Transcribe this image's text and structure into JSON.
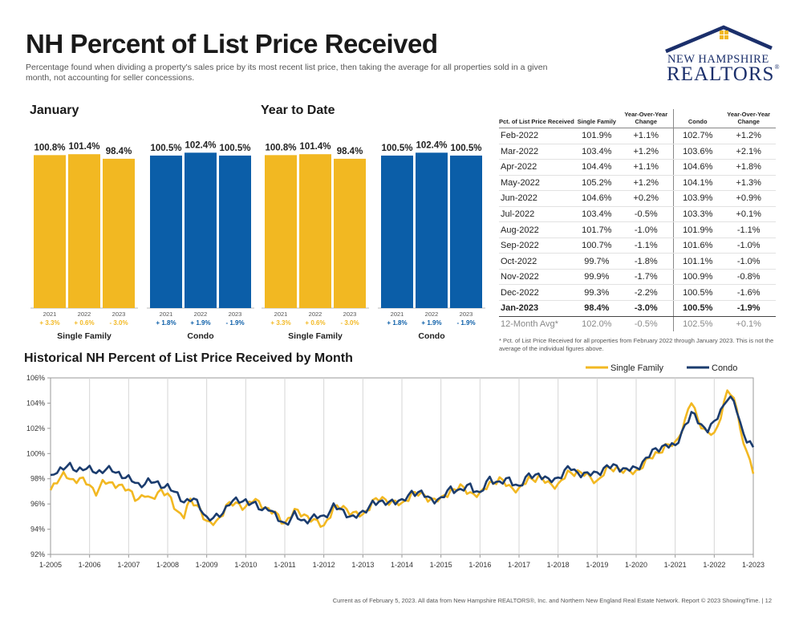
{
  "page": {
    "title": "NH Percent of List Price Received",
    "subtitle": "Percentage found when dividing a property's sales price by its most recent list price, then taking the average for all properties sold in a given month, not accounting for seller concessions.",
    "logo": {
      "line1": "NEW HAMPSHIRE",
      "line2": "REALTORS",
      "reg": "®"
    },
    "footer": "Current as of February 5, 2023. All data from New Hampshire REALTORS®, Inc. and Northern New England Real Estate Network. Report © 2023 ShowingTime. | 12"
  },
  "colors": {
    "single_family": "#f2b822",
    "condo": "#0b5ea8",
    "condo_line": "#1b3c6e",
    "positive_change": "#f2b822",
    "condo_change": "#0b5ea8"
  },
  "sections": {
    "january": "January",
    "ytd": "Year to Date",
    "historical": "Historical NH Percent of List Price Received by Month"
  },
  "chart_data": [
    {
      "type": "bar",
      "title": "January",
      "groups": [
        {
          "name": "Single Family",
          "categories": [
            "2021",
            "2022",
            "2023"
          ],
          "values": [
            100.8,
            101.4,
            98.4
          ],
          "labels": [
            "100.8%",
            "101.4%",
            "98.4%"
          ],
          "changes": [
            "+ 3.3%",
            "+ 0.6%",
            "- 3.0%"
          ]
        },
        {
          "name": "Condo",
          "categories": [
            "2021",
            "2022",
            "2023"
          ],
          "values": [
            100.5,
            102.4,
            100.5
          ],
          "labels": [
            "100.5%",
            "102.4%",
            "100.5%"
          ],
          "changes": [
            "+ 1.8%",
            "+ 1.9%",
            "- 1.9%"
          ]
        }
      ]
    },
    {
      "type": "bar",
      "title": "Year to Date",
      "groups": [
        {
          "name": "Single Family",
          "categories": [
            "2021",
            "2022",
            "2023"
          ],
          "values": [
            100.8,
            101.4,
            98.4
          ],
          "labels": [
            "100.8%",
            "101.4%",
            "98.4%"
          ],
          "changes": [
            "+ 3.3%",
            "+ 0.6%",
            "- 3.0%"
          ]
        },
        {
          "name": "Condo",
          "categories": [
            "2021",
            "2022",
            "2023"
          ],
          "values": [
            100.5,
            102.4,
            100.5
          ],
          "labels": [
            "100.5%",
            "102.4%",
            "100.5%"
          ],
          "changes": [
            "+ 1.8%",
            "+ 1.9%",
            "- 1.9%"
          ]
        }
      ]
    },
    {
      "type": "table",
      "headers": [
        "Pct. of List Price Received",
        "Single Family",
        "Year-Over-Year Change",
        "Condo",
        "Year-Over-Year Change"
      ],
      "rows": [
        [
          "Feb-2022",
          "101.9%",
          "+1.1%",
          "102.7%",
          "+1.2%"
        ],
        [
          "Mar-2022",
          "103.4%",
          "+1.2%",
          "103.6%",
          "+2.1%"
        ],
        [
          "Apr-2022",
          "104.4%",
          "+1.1%",
          "104.6%",
          "+1.8%"
        ],
        [
          "May-2022",
          "105.2%",
          "+1.2%",
          "104.1%",
          "+1.3%"
        ],
        [
          "Jun-2022",
          "104.6%",
          "+0.2%",
          "103.9%",
          "+0.9%"
        ],
        [
          "Jul-2022",
          "103.4%",
          "-0.5%",
          "103.3%",
          "+0.1%"
        ],
        [
          "Aug-2022",
          "101.7%",
          "-1.0%",
          "101.9%",
          "-1.1%"
        ],
        [
          "Sep-2022",
          "100.7%",
          "-1.1%",
          "101.6%",
          "-1.0%"
        ],
        [
          "Oct-2022",
          "99.7%",
          "-1.8%",
          "101.1%",
          "-1.0%"
        ],
        [
          "Nov-2022",
          "99.9%",
          "-1.7%",
          "100.9%",
          "-0.8%"
        ],
        [
          "Dec-2022",
          "99.3%",
          "-2.2%",
          "100.5%",
          "-1.6%"
        ],
        [
          "Jan-2023",
          "98.4%",
          "-3.0%",
          "100.5%",
          "-1.9%"
        ]
      ],
      "avg_row": [
        "12-Month Avg*",
        "102.0%",
        "-0.5%",
        "102.5%",
        "+0.1%"
      ],
      "footnote": "* Pct. of List Price Received for all properties from February 2022 through January 2023. This is not the average of the individual figures above."
    },
    {
      "type": "line",
      "title": "Historical NH Percent of List Price Received by Month",
      "xlabel": "",
      "ylabel": "",
      "x_ticks": [
        "1-2005",
        "1-2006",
        "1-2007",
        "1-2008",
        "1-2009",
        "1-2010",
        "1-2011",
        "1-2012",
        "1-2013",
        "1-2014",
        "1-2015",
        "1-2016",
        "1-2017",
        "1-2018",
        "1-2019",
        "1-2020",
        "1-2021",
        "1-2022",
        "1-2023"
      ],
      "y_ticks": [
        "92%",
        "94%",
        "96%",
        "98%",
        "100%",
        "102%",
        "104%",
        "106%"
      ],
      "ylim": [
        92,
        106
      ],
      "grid": "vertical",
      "legend": "top-right",
      "series": [
        {
          "name": "Single Family",
          "anchors": [
            [
              2005.0,
              97.1
            ],
            [
              2005.15,
              97.9
            ],
            [
              2005.35,
              98.3
            ],
            [
              2005.55,
              97.8
            ],
            [
              2005.75,
              98.1
            ],
            [
              2006.0,
              97.4
            ],
            [
              2006.15,
              96.9
            ],
            [
              2006.35,
              97.8
            ],
            [
              2006.55,
              97.5
            ],
            [
              2006.75,
              97.6
            ],
            [
              2007.0,
              97.0
            ],
            [
              2007.2,
              96.4
            ],
            [
              2007.45,
              96.8
            ],
            [
              2007.55,
              96.1
            ],
            [
              2007.8,
              97.2
            ],
            [
              2008.0,
              96.7
            ],
            [
              2008.2,
              95.6
            ],
            [
              2008.4,
              95.0
            ],
            [
              2008.55,
              96.2
            ],
            [
              2008.8,
              95.8
            ],
            [
              2009.0,
              94.6
            ],
            [
              2009.1,
              94.3
            ],
            [
              2009.3,
              94.7
            ],
            [
              2009.5,
              95.9
            ],
            [
              2009.75,
              96.0
            ],
            [
              2010.0,
              95.8
            ],
            [
              2010.2,
              96.3
            ],
            [
              2010.4,
              96.0
            ],
            [
              2010.6,
              95.5
            ],
            [
              2010.8,
              95.1
            ],
            [
              2011.0,
              94.5
            ],
            [
              2011.25,
              95.4
            ],
            [
              2011.5,
              95.2
            ],
            [
              2011.75,
              94.6
            ],
            [
              2012.0,
              94.3
            ],
            [
              2012.25,
              95.6
            ],
            [
              2012.5,
              95.8
            ],
            [
              2012.75,
              95.2
            ],
            [
              2013.0,
              95.1
            ],
            [
              2013.25,
              96.2
            ],
            [
              2013.5,
              96.4
            ],
            [
              2013.75,
              96.2
            ],
            [
              2014.0,
              95.9
            ],
            [
              2014.25,
              96.9
            ],
            [
              2014.5,
              96.7
            ],
            [
              2014.75,
              96.4
            ],
            [
              2015.0,
              96.3
            ],
            [
              2015.25,
              97.1
            ],
            [
              2015.5,
              97.3
            ],
            [
              2015.75,
              96.9
            ],
            [
              2016.0,
              96.7
            ],
            [
              2016.25,
              97.7
            ],
            [
              2016.5,
              97.9
            ],
            [
              2016.75,
              97.4
            ],
            [
              2017.0,
              97.1
            ],
            [
              2017.25,
              98.0
            ],
            [
              2017.5,
              98.1
            ],
            [
              2017.75,
              97.6
            ],
            [
              2018.0,
              97.5
            ],
            [
              2018.25,
              98.4
            ],
            [
              2018.5,
              98.6
            ],
            [
              2018.75,
              98.2
            ],
            [
              2019.0,
              97.8
            ],
            [
              2019.25,
              98.7
            ],
            [
              2019.5,
              98.9
            ],
            [
              2019.75,
              98.5
            ],
            [
              2020.0,
              98.6
            ],
            [
              2020.25,
              99.3
            ],
            [
              2020.5,
              100.0
            ],
            [
              2020.75,
              100.5
            ],
            [
              2021.0,
              100.8
            ],
            [
              2021.25,
              102.5
            ],
            [
              2021.4,
              104.2
            ],
            [
              2021.55,
              103.0
            ],
            [
              2021.75,
              101.8
            ],
            [
              2022.0,
              101.4
            ],
            [
              2022.2,
              103.4
            ],
            [
              2022.35,
              105.2
            ],
            [
              2022.6,
              103.4
            ],
            [
              2022.75,
              100.7
            ],
            [
              2022.9,
              99.8
            ],
            [
              2023.0,
              98.4
            ]
          ]
        },
        {
          "name": "Condo",
          "anchors": [
            [
              2005.0,
              98.3
            ],
            [
              2005.25,
              98.8
            ],
            [
              2005.45,
              99.0
            ],
            [
              2005.65,
              98.7
            ],
            [
              2005.85,
              98.9
            ],
            [
              2006.0,
              98.7
            ],
            [
              2006.2,
              98.5
            ],
            [
              2006.4,
              98.8
            ],
            [
              2006.6,
              98.6
            ],
            [
              2006.85,
              98.3
            ],
            [
              2007.0,
              98.0
            ],
            [
              2007.25,
              97.5
            ],
            [
              2007.5,
              97.8
            ],
            [
              2007.75,
              97.6
            ],
            [
              2008.0,
              97.4
            ],
            [
              2008.2,
              96.8
            ],
            [
              2008.45,
              96.2
            ],
            [
              2008.65,
              96.4
            ],
            [
              2008.85,
              95.7
            ],
            [
              2009.0,
              94.9
            ],
            [
              2009.2,
              94.8
            ],
            [
              2009.4,
              95.3
            ],
            [
              2009.6,
              96.2
            ],
            [
              2009.8,
              96.2
            ],
            [
              2010.0,
              96.3
            ],
            [
              2010.2,
              96.0
            ],
            [
              2010.4,
              95.5
            ],
            [
              2010.6,
              95.8
            ],
            [
              2010.8,
              94.8
            ],
            [
              2011.0,
              94.4
            ],
            [
              2011.25,
              95.2
            ],
            [
              2011.45,
              94.5
            ],
            [
              2011.7,
              95.0
            ],
            [
              2012.0,
              94.9
            ],
            [
              2012.25,
              95.9
            ],
            [
              2012.5,
              95.3
            ],
            [
              2012.75,
              95.0
            ],
            [
              2013.0,
              95.2
            ],
            [
              2013.25,
              96.2
            ],
            [
              2013.5,
              96.0
            ],
            [
              2013.75,
              96.3
            ],
            [
              2014.0,
              96.1
            ],
            [
              2014.25,
              97.0
            ],
            [
              2014.5,
              96.8
            ],
            [
              2014.75,
              96.4
            ],
            [
              2015.0,
              96.3
            ],
            [
              2015.25,
              97.3
            ],
            [
              2015.5,
              97.0
            ],
            [
              2015.75,
              97.5
            ],
            [
              2016.0,
              96.8
            ],
            [
              2016.25,
              98.0
            ],
            [
              2016.5,
              97.7
            ],
            [
              2016.75,
              97.9
            ],
            [
              2017.0,
              97.4
            ],
            [
              2017.25,
              98.2
            ],
            [
              2017.5,
              98.4
            ],
            [
              2017.75,
              97.8
            ],
            [
              2018.0,
              98.1
            ],
            [
              2018.3,
              98.9
            ],
            [
              2018.5,
              98.5
            ],
            [
              2018.75,
              98.3
            ],
            [
              2019.0,
              98.5
            ],
            [
              2019.25,
              98.9
            ],
            [
              2019.5,
              99.0
            ],
            [
              2019.75,
              98.7
            ],
            [
              2020.0,
              98.8
            ],
            [
              2020.25,
              99.6
            ],
            [
              2020.5,
              100.3
            ],
            [
              2020.75,
              100.7
            ],
            [
              2021.0,
              100.5
            ],
            [
              2021.25,
              102.3
            ],
            [
              2021.45,
              103.2
            ],
            [
              2021.65,
              102.3
            ],
            [
              2021.85,
              101.9
            ],
            [
              2022.0,
              102.4
            ],
            [
              2022.2,
              103.6
            ],
            [
              2022.35,
              104.6
            ],
            [
              2022.55,
              103.8
            ],
            [
              2022.7,
              101.9
            ],
            [
              2022.85,
              101.1
            ],
            [
              2023.0,
              100.5
            ]
          ]
        }
      ]
    }
  ]
}
